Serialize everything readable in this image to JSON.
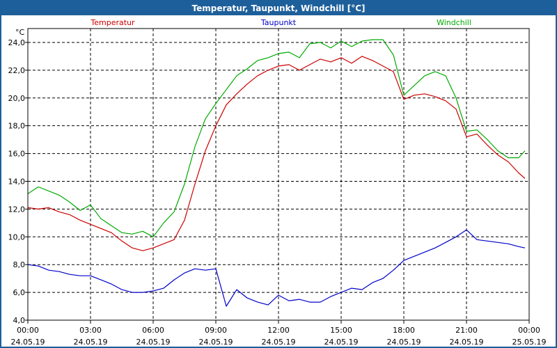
{
  "window": {
    "title": "Temperatur, Taupunkt, Windchill [°C]"
  },
  "chart_data": {
    "type": "line",
    "title": "Temperatur, Taupunkt, Windchill [°C]",
    "ylabel": "°C",
    "ylim": [
      4.0,
      25.0
    ],
    "yticks": [
      "4,0",
      "6,0",
      "8,0",
      "10,0",
      "12,0",
      "14,0",
      "16,0",
      "18,0",
      "20,0",
      "22,0",
      "24,0"
    ],
    "xlim_hours": [
      0,
      24
    ],
    "xticks": [
      {
        "time": "00:00",
        "date": "24.05.19"
      },
      {
        "time": "03:00",
        "date": "24.05.19"
      },
      {
        "time": "06:00",
        "date": "24.05.19"
      },
      {
        "time": "09:00",
        "date": "24.05.19"
      },
      {
        "time": "12:00",
        "date": "24.05.19"
      },
      {
        "time": "15:00",
        "date": "24.05.19"
      },
      {
        "time": "18:00",
        "date": "24.05.19"
      },
      {
        "time": "21:00",
        "date": "24.05.19"
      },
      {
        "time": "00:00",
        "date": "25.05.19"
      }
    ],
    "grid": true,
    "series": [
      {
        "name": "Temperatur",
        "color": "#cc0000",
        "x": [
          0,
          0.5,
          1,
          1.5,
          2,
          2.5,
          3,
          3.5,
          4,
          4.5,
          5,
          5.5,
          6,
          6.5,
          7,
          7.5,
          8,
          8.5,
          9,
          9.5,
          10,
          10.5,
          11,
          11.5,
          12,
          12.5,
          13,
          13.5,
          14,
          14.5,
          15,
          15.5,
          16,
          16.5,
          17,
          17.5,
          18,
          18.5,
          19,
          19.5,
          20,
          20.5,
          21,
          21.5,
          22,
          22.5,
          23,
          23.5,
          23.8
        ],
        "values": [
          12.1,
          12.0,
          12.1,
          11.8,
          11.6,
          11.2,
          10.9,
          10.6,
          10.3,
          9.7,
          9.2,
          9.0,
          9.2,
          9.5,
          9.8,
          11.2,
          13.8,
          16.2,
          18.0,
          19.5,
          20.3,
          21.0,
          21.6,
          22.0,
          22.3,
          22.4,
          22.0,
          22.4,
          22.8,
          22.6,
          22.9,
          22.5,
          23.0,
          22.7,
          22.3,
          21.9,
          19.9,
          20.2,
          20.3,
          20.1,
          19.8,
          19.2,
          17.2,
          17.4,
          16.6,
          15.9,
          15.4,
          14.6,
          14.2
        ]
      },
      {
        "name": "Taupunkt",
        "color": "#0000cc",
        "x": [
          0,
          0.5,
          1,
          1.5,
          2,
          2.5,
          3,
          3.5,
          4,
          4.5,
          5,
          5.5,
          6,
          6.5,
          7,
          7.5,
          8,
          8.5,
          9,
          9.5,
          10,
          10.5,
          11,
          11.5,
          12,
          12.5,
          13,
          13.5,
          14,
          14.5,
          15,
          15.5,
          16,
          16.5,
          17,
          17.5,
          18,
          18.5,
          19,
          19.5,
          20,
          20.5,
          21,
          21.5,
          22,
          22.5,
          23,
          23.5,
          23.8
        ],
        "values": [
          8.0,
          7.9,
          7.6,
          7.5,
          7.3,
          7.2,
          7.2,
          6.9,
          6.6,
          6.2,
          6.0,
          6.0,
          6.1,
          6.3,
          6.9,
          7.4,
          7.7,
          7.6,
          7.7,
          5.0,
          6.2,
          5.6,
          5.3,
          5.1,
          5.8,
          5.4,
          5.5,
          5.3,
          5.3,
          5.7,
          6.0,
          6.3,
          6.2,
          6.7,
          7.0,
          7.6,
          8.3,
          8.6,
          8.9,
          9.2,
          9.6,
          10.0,
          10.5,
          9.8,
          9.7,
          9.6,
          9.5,
          9.3,
          9.2
        ]
      },
      {
        "name": "Windchill",
        "color": "#00aa00",
        "x": [
          0,
          0.5,
          1,
          1.5,
          2,
          2.5,
          3,
          3.5,
          4,
          4.5,
          5,
          5.5,
          6,
          6.5,
          7,
          7.5,
          8,
          8.5,
          9,
          9.5,
          10,
          10.5,
          11,
          11.5,
          12,
          12.5,
          13,
          13.5,
          14,
          14.5,
          15,
          15.5,
          16,
          16.5,
          17,
          17.5,
          18,
          18.5,
          19,
          19.5,
          20,
          20.5,
          21,
          21.5,
          22,
          22.5,
          23,
          23.5,
          23.8
        ],
        "values": [
          13.1,
          13.6,
          13.3,
          13.0,
          12.5,
          11.9,
          12.3,
          11.3,
          10.8,
          10.3,
          10.2,
          10.4,
          10.0,
          11.0,
          11.8,
          13.8,
          16.5,
          18.5,
          19.6,
          20.6,
          21.6,
          22.1,
          22.7,
          22.9,
          23.2,
          23.3,
          22.9,
          23.9,
          24.0,
          23.6,
          24.1,
          23.7,
          24.1,
          24.2,
          24.2,
          23.1,
          20.2,
          20.9,
          21.6,
          21.9,
          21.6,
          20.0,
          17.6,
          17.7,
          17.0,
          16.2,
          15.7,
          15.7,
          16.2
        ]
      }
    ]
  }
}
